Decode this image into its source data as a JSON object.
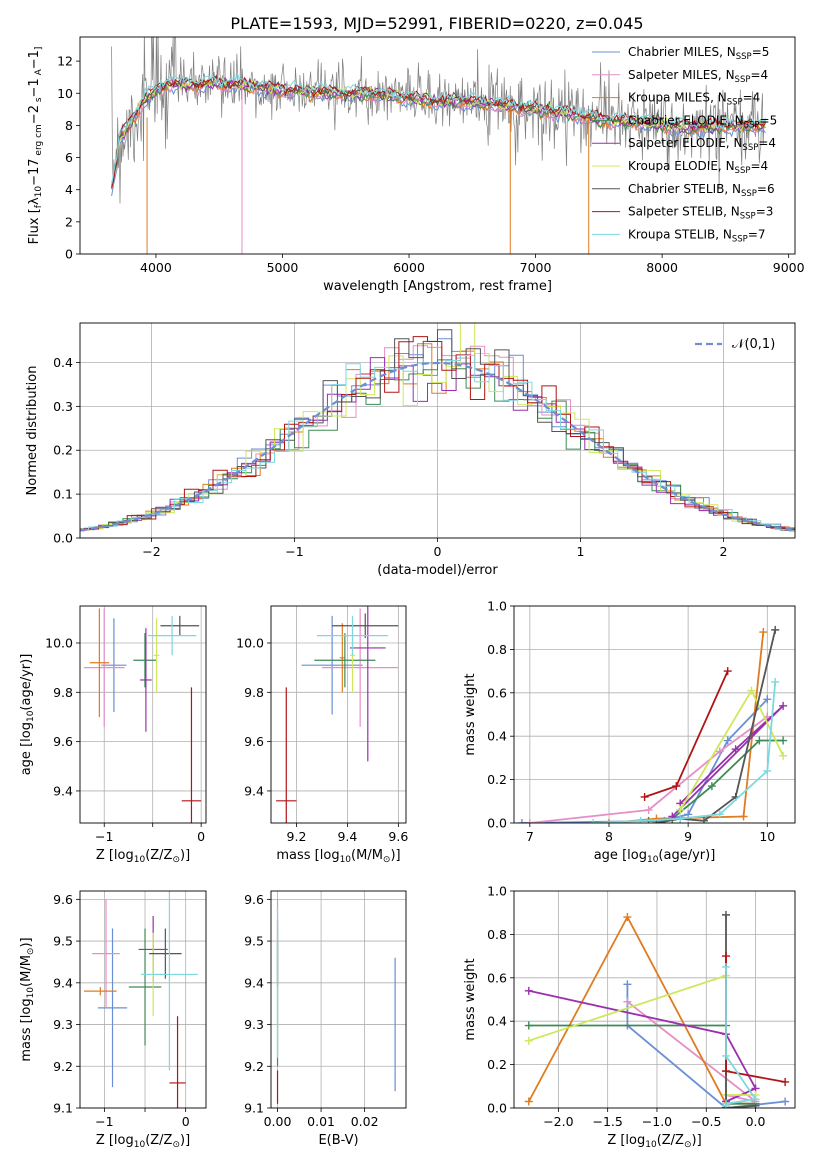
{
  "figure_title": "PLATE=1593, MJD=52991, FIBERID=0220, z=0.045",
  "models": [
    {
      "name": "Chabrier MILES",
      "nssp": "5",
      "color": "#6b8fd6"
    },
    {
      "name": "Salpeter MILES",
      "nssp": "4",
      "color": "#e58fc6"
    },
    {
      "name": "Kroupa MILES",
      "nssp": "4",
      "color": "#e07b1f"
    },
    {
      "name": "Chabrier ELODIE",
      "nssp": "5",
      "color": "#3d8a55"
    },
    {
      "name": "Salpeter ELODIE",
      "nssp": "4",
      "color": "#9b2fae"
    },
    {
      "name": "Kroupa ELODIE",
      "nssp": "4",
      "color": "#cde85a"
    },
    {
      "name": "Chabrier STELIB",
      "nssp": "6",
      "color": "#555555"
    },
    {
      "name": "Salpeter STELIB",
      "nssp": "3",
      "color": "#b01515"
    },
    {
      "name": "Kroupa STELIB",
      "nssp": "7",
      "color": "#7dd8e0"
    }
  ],
  "chart_data": [
    {
      "id": "spectrum",
      "type": "line",
      "xlabel": "wavelength [Angstrom, rest frame]",
      "ylabel_parts": [
        "Flux [",
        "f",
        "λ",
        "10",
        "−17",
        " erg cm",
        "−2",
        " s",
        "−1",
        " A",
        "−1",
        "]"
      ],
      "xlim": [
        3400,
        9050
      ],
      "ylim": [
        0,
        13.5
      ],
      "xticks": [
        4000,
        5000,
        6000,
        7000,
        8000,
        9000
      ],
      "yticks": [
        0,
        2,
        4,
        6,
        8,
        10,
        12
      ],
      "legend_suffix_label": "N",
      "legend_suffix_sub": "SSP",
      "legend_position": "upper-right",
      "grid": false,
      "data_envelope": {
        "x": [
          3650,
          3700,
          3800,
          3900,
          4000,
          4100,
          4200,
          4300,
          4400,
          4500,
          4600,
          4700,
          4800,
          4900,
          5000,
          5200,
          5400,
          5600,
          5800,
          6000,
          6200,
          6400,
          6600,
          6800,
          7000,
          7200,
          7400,
          7600,
          7800,
          8000,
          8200,
          8400,
          8600,
          8800
        ],
        "y": [
          5.2,
          7.0,
          8.2,
          9.5,
          10.2,
          10.6,
          10.6,
          10.5,
          10.6,
          10.6,
          10.5,
          10.5,
          10.4,
          10.3,
          10.2,
          10.1,
          10.0,
          10.0,
          9.9,
          9.7,
          9.5,
          9.5,
          9.4,
          9.2,
          9.0,
          8.8,
          8.5,
          8.3,
          8.2,
          8.0,
          7.9,
          7.9,
          8.0,
          8.0
        ]
      }
    },
    {
      "id": "residuals",
      "type": "histogram",
      "xlabel": "(data-model)/error",
      "ylabel": "Normed distribution",
      "xlim": [
        -2.5,
        2.5
      ],
      "ylim": [
        0,
        0.49
      ],
      "xticks": [
        -2,
        -1,
        0,
        1,
        2
      ],
      "yticks": [
        0.0,
        0.1,
        0.2,
        0.3,
        0.4
      ],
      "legend": "𝒩(0,1)",
      "legend_position": "upper-right",
      "normal_curve": {
        "mean": 0,
        "sd": 1
      },
      "grid": true
    },
    {
      "id": "age-vs-metallicity",
      "type": "errorbar",
      "xlabel_parts": [
        "Z [log",
        "10",
        "(Z/Z",
        "⊙",
        ")]"
      ],
      "ylabel_parts": [
        "age  [log",
        "10",
        "(age/yr)]"
      ],
      "xlim": [
        -1.25,
        0.05
      ],
      "ylim": [
        9.27,
        10.15
      ],
      "xticks": [
        -1,
        -0.5,
        0
      ],
      "xtick_labels": [
        "−1",
        "",
        "0"
      ],
      "yticks": [
        9.4,
        9.6,
        9.8,
        10.0
      ],
      "grid": true,
      "points": [
        {
          "m": 0,
          "x": -0.9,
          "y": 9.91,
          "xerr": 0.13,
          "yerr": 0.19
        },
        {
          "m": 1,
          "x": -1.0,
          "y": 9.9,
          "xerr": 0.21,
          "yerr": 0.24
        },
        {
          "m": 2,
          "x": -1.05,
          "y": 9.92,
          "xerr": 0.1,
          "yerr": 0.22
        },
        {
          "m": 3,
          "x": -0.58,
          "y": 9.93,
          "xerr": 0.12,
          "yerr": 0.11
        },
        {
          "m": 4,
          "x": -0.57,
          "y": 9.85,
          "xerr": 0.06,
          "yerr": 0.21
        },
        {
          "m": 5,
          "x": -0.46,
          "y": 9.95,
          "xerr": 0.03,
          "yerr": 0.15
        },
        {
          "m": 6,
          "x": -0.22,
          "y": 10.07,
          "xerr": 0.2,
          "yerr": 0.04
        },
        {
          "m": 7,
          "x": -0.1,
          "y": 9.36,
          "xerr": 0.1,
          "yerr": 0.46
        },
        {
          "m": 8,
          "x": -0.3,
          "y": 10.03,
          "xerr": 0.25,
          "yerr": 0.08
        }
      ]
    },
    {
      "id": "age-vs-mass",
      "type": "errorbar",
      "xlabel_parts": [
        "mass [log",
        "10",
        "(M/M",
        "⊙",
        ")]"
      ],
      "ylabel": "",
      "xlim": [
        9.1,
        9.63
      ],
      "ylim": [
        9.27,
        10.15
      ],
      "xticks": [
        9.2,
        9.4,
        9.6
      ],
      "yticks": [
        9.4,
        9.6,
        9.8,
        10.0
      ],
      "grid": true,
      "points": [
        {
          "m": 0,
          "x": 9.34,
          "y": 9.91,
          "xerr": 0.12,
          "yerr": 0.2
        },
        {
          "m": 1,
          "x": 9.45,
          "y": 9.9,
          "xerr": 0.15,
          "yerr": 0.24
        },
        {
          "m": 2,
          "x": 9.38,
          "y": 9.94,
          "xerr": 0.01,
          "yerr": 0.14
        },
        {
          "m": 3,
          "x": 9.39,
          "y": 9.93,
          "xerr": 0.12,
          "yerr": 0.11
        },
        {
          "m": 4,
          "x": 9.48,
          "y": 9.98,
          "xerr": 0.07,
          "yerr": 0.46
        },
        {
          "m": 5,
          "x": 9.42,
          "y": 9.95,
          "xerr": 0.01,
          "yerr": 0.15
        },
        {
          "m": 6,
          "x": 9.47,
          "y": 10.07,
          "xerr": 0.13,
          "yerr": 0.05
        },
        {
          "m": 7,
          "x": 9.16,
          "y": 9.36,
          "xerr": 0.04,
          "yerr": 0.46
        },
        {
          "m": 8,
          "x": 9.42,
          "y": 10.03,
          "xerr": 0.14,
          "yerr": 0.08
        }
      ]
    },
    {
      "id": "weight-vs-age",
      "type": "line",
      "xlabel_parts": [
        "age  [log",
        "10",
        "(age/yr)]"
      ],
      "ylabel": "mass weight",
      "xlim": [
        6.8,
        10.35
      ],
      "ylim": [
        0,
        1.0
      ],
      "xticks": [
        7,
        8,
        9,
        10
      ],
      "yticks": [
        0.0,
        0.2,
        0.4,
        0.6,
        0.8,
        1.0
      ],
      "grid": true,
      "series": [
        {
          "m": 0,
          "x": [
            6.9,
            8.7,
            9.0,
            9.5,
            10.0
          ],
          "y": [
            0.0,
            0.01,
            0.04,
            0.38,
            0.57
          ]
        },
        {
          "m": 1,
          "x": [
            7.0,
            8.5,
            9.4,
            10.0
          ],
          "y": [
            0.0,
            0.06,
            0.33,
            0.49
          ]
        },
        {
          "m": 2,
          "x": [
            8.0,
            8.6,
            9.7,
            9.95
          ],
          "y": [
            0.0,
            0.02,
            0.03,
            0.88
          ]
        },
        {
          "m": 3,
          "x": [
            8.5,
            8.8,
            9.3,
            9.9,
            10.2
          ],
          "y": [
            0.01,
            0.02,
            0.17,
            0.38,
            0.38
          ]
        },
        {
          "m": 4,
          "x": [
            8.9,
            9.6,
            10.2,
            8.8
          ],
          "y": [
            0.09,
            0.34,
            0.54,
            0.03
          ]
        },
        {
          "m": 5,
          "x": [
            8.9,
            9.8,
            10.2
          ],
          "y": [
            0.06,
            0.61,
            0.31
          ]
        },
        {
          "m": 6,
          "x": [
            8.6,
            8.9,
            9.2,
            9.6,
            10.1
          ],
          "y": [
            0.0,
            0.02,
            0.01,
            0.12,
            0.89
          ]
        },
        {
          "m": 7,
          "x": [
            8.45,
            8.85,
            9.5
          ],
          "y": [
            0.12,
            0.17,
            0.7
          ]
        },
        {
          "m": 8,
          "x": [
            7.8,
            8.4,
            8.9,
            9.4,
            10.0,
            10.1
          ],
          "y": [
            0.0,
            0.01,
            0.02,
            0.04,
            0.24,
            0.65
          ]
        }
      ]
    },
    {
      "id": "mass-vs-metallicity",
      "type": "errorbar",
      "xlabel_parts": [
        "Z [log",
        "10",
        "(Z/Z",
        "⊙",
        ")]"
      ],
      "ylabel_parts": [
        "mass [log",
        "10",
        "(M/M",
        "⊙",
        ")]"
      ],
      "xlim": [
        -1.3,
        0.25
      ],
      "ylim": [
        9.1,
        9.62
      ],
      "xticks": [
        -1,
        -0.5,
        0
      ],
      "xtick_labels": [
        "−1",
        "",
        "0"
      ],
      "yticks": [
        9.1,
        9.2,
        9.3,
        9.4,
        9.5,
        9.6
      ],
      "grid": true,
      "points": [
        {
          "m": 0,
          "x": -0.9,
          "y": 9.34,
          "xerr": 0.18,
          "yerr": 0.19
        },
        {
          "m": 1,
          "x": -0.98,
          "y": 9.47,
          "xerr": 0.17,
          "yerr": 0.13
        },
        {
          "m": 2,
          "x": -1.05,
          "y": 9.38,
          "xerr": 0.2,
          "yerr": 0.01
        },
        {
          "m": 3,
          "x": -0.5,
          "y": 9.39,
          "xerr": 0.2,
          "yerr": 0.14
        },
        {
          "m": 4,
          "x": -0.4,
          "y": 9.48,
          "xerr": 0.18,
          "yerr": 0.08
        },
        {
          "m": 5,
          "x": -0.4,
          "y": 9.42,
          "xerr": 0.15,
          "yerr": 0.1
        },
        {
          "m": 6,
          "x": -0.25,
          "y": 9.47,
          "xerr": 0.2,
          "yerr": 0.06
        },
        {
          "m": 7,
          "x": -0.1,
          "y": 9.16,
          "xerr": 0.1,
          "yerr": 0.16
        },
        {
          "m": 8,
          "x": -0.2,
          "y": 9.42,
          "xerr": 0.35,
          "yerr": 0.23
        }
      ]
    },
    {
      "id": "mass-vs-reddening",
      "type": "errorbar",
      "xlabel": "E(B-V)",
      "ylabel": "",
      "xlim": [
        -0.0015,
        0.0295
      ],
      "ylim": [
        9.1,
        9.62
      ],
      "xticks": [
        0,
        0.01,
        0.02
      ],
      "xtick_labels": [
        "0.00",
        "0.01",
        "0.02"
      ],
      "yticks": [
        9.1,
        9.2,
        9.3,
        9.4,
        9.5,
        9.6
      ],
      "grid": true,
      "points": [
        {
          "m": 0,
          "x": 0.027,
          "y": 9.3,
          "xerr": 0,
          "yerr": 0.16
        },
        {
          "m": 1,
          "x": 0.0,
          "y": 9.5,
          "xerr": 0,
          "yerr": 0.1
        },
        {
          "m": 3,
          "x": 0.0,
          "y": 9.35,
          "xerr": 0,
          "yerr": 0.15
        },
        {
          "m": 6,
          "x": 0.0,
          "y": 9.47,
          "xerr": 0,
          "yerr": 0.08
        },
        {
          "m": 7,
          "x": 0.0,
          "y": 9.15,
          "xerr": 0,
          "yerr": 0.04
        },
        {
          "m": 8,
          "x": 0.0,
          "y": 9.4,
          "xerr": 0,
          "yerr": 0.18
        }
      ]
    },
    {
      "id": "weight-vs-metallicity",
      "type": "line",
      "xlabel_parts": [
        "Z [log",
        "10",
        "(Z/Z",
        "⊙",
        ")]"
      ],
      "ylabel": "mass weight",
      "xlim": [
        -2.45,
        0.4
      ],
      "ylim": [
        0,
        1.0
      ],
      "xticks": [
        -2.0,
        -1.5,
        -1.0,
        -0.5,
        0.0
      ],
      "xtick_labels": [
        "−2.0",
        "−1.5",
        "−1.0",
        "−0.5",
        "0.0"
      ],
      "yticks": [
        0.0,
        0.2,
        0.4,
        0.6,
        0.8,
        1.0
      ],
      "grid": true,
      "series": [
        {
          "m": 0,
          "x": [
            -1.3,
            -1.3,
            -0.3,
            -0.3,
            0.3
          ],
          "y": [
            0.57,
            0.38,
            0.0,
            0.0,
            0.03
          ]
        },
        {
          "m": 1,
          "x": [
            -1.3,
            0.0,
            -0.3
          ],
          "y": [
            0.49,
            0.03,
            0.06
          ]
        },
        {
          "m": 2,
          "x": [
            -2.3,
            -1.3,
            -0.3,
            0.0
          ],
          "y": [
            0.03,
            0.88,
            0.02,
            0.02
          ]
        },
        {
          "m": 3,
          "x": [
            -2.3,
            -0.3,
            -0.3,
            -0.3,
            0.0
          ],
          "y": [
            0.38,
            0.38,
            0.17,
            0.02,
            0.02
          ]
        },
        {
          "m": 4,
          "x": [
            -2.3,
            -0.3,
            0.0,
            -0.3
          ],
          "y": [
            0.54,
            0.34,
            0.09,
            0.03
          ]
        },
        {
          "m": 5,
          "x": [
            -2.3,
            -0.3,
            -0.3,
            0.0
          ],
          "y": [
            0.31,
            0.61,
            0.06,
            0.06
          ]
        },
        {
          "m": 6,
          "x": [
            -0.3,
            -0.3,
            0.0,
            -0.3
          ],
          "y": [
            0.89,
            0.0,
            0.01,
            0.0
          ]
        },
        {
          "m": 7,
          "x": [
            -0.3,
            -0.3,
            0.3
          ],
          "y": [
            0.7,
            0.17,
            0.12
          ]
        },
        {
          "m": 8,
          "x": [
            -0.3,
            -0.3,
            0.0,
            -0.3,
            -0.3
          ],
          "y": [
            0.65,
            0.24,
            0.04,
            0.02,
            0.01
          ]
        }
      ]
    }
  ]
}
